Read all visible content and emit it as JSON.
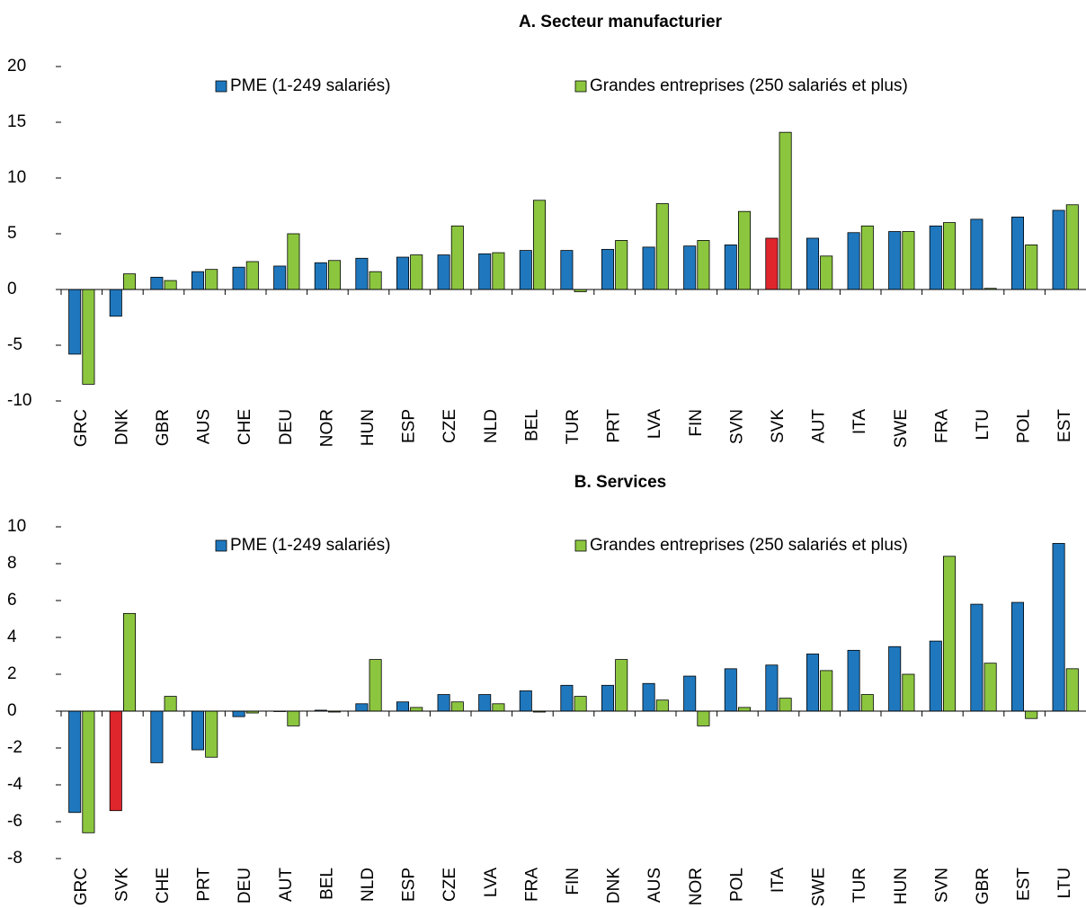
{
  "chart_data": [
    {
      "type": "bar",
      "title": "A. Secteur manufacturier",
      "categories": [
        "GRC",
        "DNK",
        "GBR",
        "AUS",
        "CHE",
        "DEU",
        "NOR",
        "HUN",
        "ESP",
        "CZE",
        "NLD",
        "BEL",
        "TUR",
        "PRT",
        "LVA",
        "FIN",
        "SVN",
        "SVK",
        "AUT",
        "ITA",
        "SWE",
        "FRA",
        "LTU",
        "POL",
        "EST"
      ],
      "series": [
        {
          "name": "PME (1-249 salariés)",
          "color": "#1f78be",
          "values": [
            -5.8,
            -2.4,
            1.1,
            1.6,
            2.0,
            2.1,
            2.4,
            2.8,
            2.9,
            3.1,
            3.2,
            3.5,
            3.5,
            3.6,
            3.8,
            3.9,
            4.0,
            4.6,
            4.6,
            5.1,
            5.2,
            5.7,
            6.3,
            6.5,
            7.1
          ]
        },
        {
          "name": "Grandes entreprises (250 salariés et plus)",
          "color": "#8cc63f",
          "values": [
            -8.5,
            1.4,
            0.8,
            1.8,
            2.5,
            5.0,
            2.6,
            1.6,
            3.1,
            5.7,
            3.3,
            8.0,
            -0.2,
            4.4,
            7.7,
            4.4,
            7.0,
            14.1,
            3.0,
            5.7,
            5.2,
            6.0,
            0.1,
            4.0,
            7.6
          ]
        }
      ],
      "highlight": {
        "category": "SVK",
        "series": 0,
        "color": "#e0262d"
      },
      "ylim": [
        -10,
        20
      ],
      "yticks": [
        -10,
        -5,
        0,
        5,
        10,
        15,
        20
      ],
      "grid": false
    },
    {
      "type": "bar",
      "title": "B. Services",
      "categories": [
        "GRC",
        "SVK",
        "CHE",
        "PRT",
        "DEU",
        "AUT",
        "BEL",
        "NLD",
        "ESP",
        "CZE",
        "LVA",
        "FRA",
        "FIN",
        "DNK",
        "AUS",
        "NOR",
        "POL",
        "ITA",
        "SWE",
        "TUR",
        "HUN",
        "SVN",
        "GBR",
        "EST",
        "LTU"
      ],
      "series": [
        {
          "name": "PME (1-249 salariés)",
          "color": "#1f78be",
          "values": [
            -5.5,
            -5.4,
            -2.8,
            -2.1,
            -0.3,
            0.0,
            0.05,
            0.4,
            0.5,
            0.9,
            0.9,
            1.1,
            1.4,
            1.4,
            1.5,
            1.9,
            2.3,
            2.5,
            3.1,
            3.3,
            3.5,
            3.8,
            5.8,
            5.9,
            9.1
          ]
        },
        {
          "name": "Grandes entreprises (250 salariés et plus)",
          "color": "#8cc63f",
          "values": [
            -6.6,
            5.3,
            0.8,
            -2.5,
            -0.1,
            -0.8,
            -0.05,
            2.8,
            0.2,
            0.5,
            0.4,
            -0.05,
            0.8,
            2.8,
            0.6,
            -0.8,
            0.2,
            0.7,
            2.2,
            0.9,
            2.0,
            8.4,
            2.6,
            -0.4,
            2.3
          ]
        }
      ],
      "highlight": {
        "category": "SVK",
        "series": 0,
        "color": "#e0262d"
      },
      "ylim": [
        -8,
        10
      ],
      "yticks": [
        -8,
        -6,
        -4,
        -2,
        0,
        2,
        4,
        6,
        8,
        10
      ],
      "grid": false
    }
  ]
}
